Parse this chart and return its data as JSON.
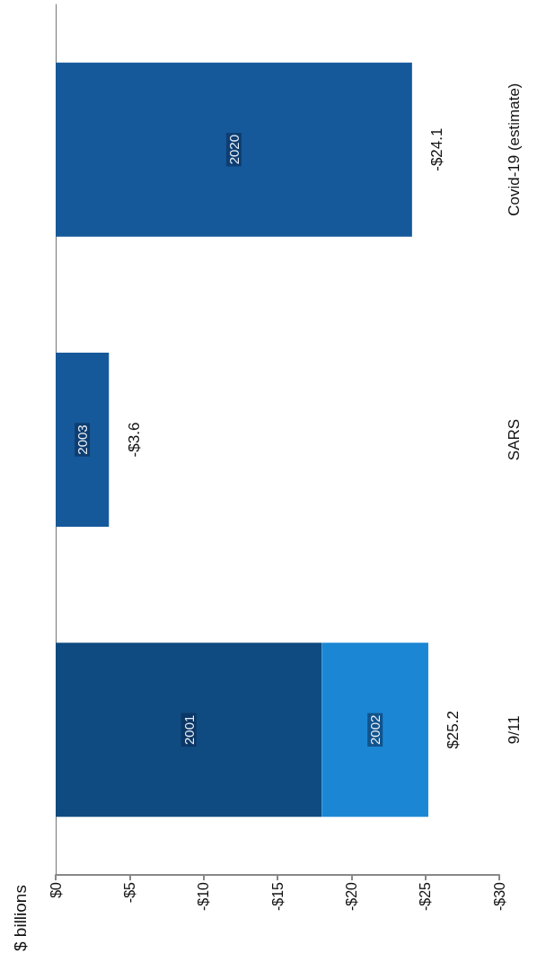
{
  "chart_data": {
    "type": "bar",
    "orientation": "horizontal",
    "annotations": [
      "$ billions",
      {
        "text": "-$24.1",
        "x": -24.1,
        "y": "Covid-19 (estimate)"
      },
      {
        "text": "-$3.6",
        "x": -3.6,
        "y": "SARS"
      },
      {
        "text": "$25.2",
        "x": -25.2,
        "y": "9/11"
      }
    ],
    "categories": [
      "Covid-19 (estimate)",
      "SARS",
      "9/11"
    ],
    "stacked": true,
    "series": [
      {
        "name": "2001",
        "color": "#0f4b80",
        "values": [
          null,
          null,
          -18
        ]
      },
      {
        "name": "2002",
        "color": "#1b87d4",
        "values": [
          null,
          null,
          -7.2
        ]
      },
      {
        "name": "2003",
        "color": "#16599a",
        "values": [
          null,
          -3.6,
          null
        ]
      },
      {
        "name": "2020",
        "color": "#16599a",
        "values": [
          -24.1,
          null,
          null
        ]
      }
    ],
    "xlim": [
      0,
      -30
    ],
    "xticks": [
      {
        "value": 0,
        "label": "$0"
      },
      {
        "value": -5,
        "label": "-$5"
      },
      {
        "value": -10,
        "label": "-$10"
      },
      {
        "value": -15,
        "label": "-$15"
      },
      {
        "value": -20,
        "label": "-$20"
      },
      {
        "value": -25,
        "label": "-$25"
      },
      {
        "value": -30,
        "label": "-$30"
      }
    ]
  }
}
